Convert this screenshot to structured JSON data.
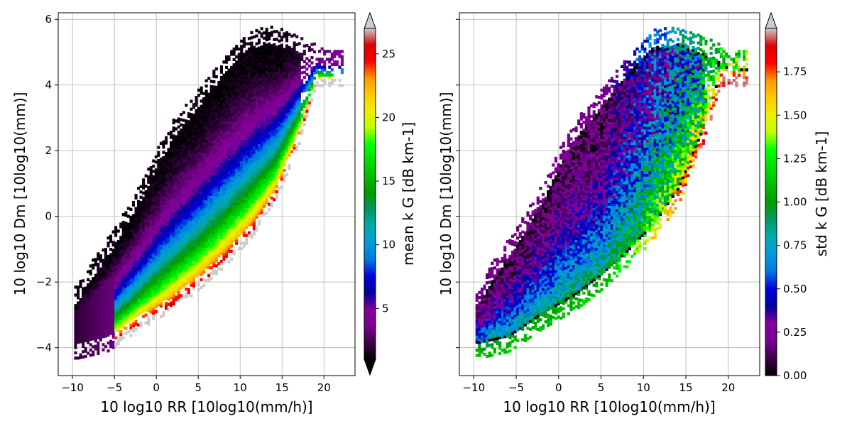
{
  "chart_data": [
    {
      "type": "heatmap",
      "title": "",
      "xlabel": "10 log10 RR [10log10(mm/h)]",
      "ylabel": "10 log10 Dm [10log10(mm)]",
      "xlim": [
        -11.7,
        23.7
      ],
      "ylim": [
        -4.85,
        6.2
      ],
      "xticks": [
        -10,
        -5,
        0,
        5,
        10,
        15,
        20
      ],
      "xtick_labels": [
        "−10",
        "−5",
        "0",
        "5",
        "10",
        "15",
        "20"
      ],
      "yticks": [
        -4,
        -2,
        0,
        2,
        4,
        6
      ],
      "ytick_labels": [
        "−4",
        "−2",
        "0",
        "2",
        "4",
        "6"
      ],
      "grid": true,
      "colormap": "nipy_spectral",
      "colorbar": {
        "label": "mean k G [dB km-1]",
        "range": [
          1,
          27
        ],
        "ticks": [
          5,
          10,
          15,
          20,
          25
        ],
        "tick_labels": [
          "5",
          "10",
          "15",
          "20",
          "25"
        ],
        "extend": "both",
        "over_color": "#c8c8c8",
        "under_color": "#000000"
      },
      "data_region": {
        "description_points_lower_edge_x": [
          -9.5,
          -6,
          -2,
          2,
          5,
          8,
          11,
          14,
          17,
          19
        ],
        "description_points_lower_edge_y": [
          -4.2,
          -4,
          -3.3,
          -2.7,
          -2.1,
          -1.4,
          -0.6,
          0.5,
          2.4,
          4.1
        ],
        "description_points_upper_edge_x": [
          -9.5,
          -8,
          -5,
          -2,
          0,
          2,
          5,
          8,
          11,
          14,
          17,
          20
        ],
        "description_points_upper_edge_y": [
          -2.4,
          -1.7,
          -0.6,
          0.7,
          1.8,
          2.7,
          3.6,
          4.6,
          5.4,
          5.5,
          5.2,
          4.8
        ]
      }
    },
    {
      "type": "heatmap",
      "title": "",
      "xlabel": "10 log10 RR [10log10(mm/h)]",
      "ylabel": "10 log10 Dm [10log10(mm)]",
      "xlim": [
        -11.7,
        23.7
      ],
      "ylim": [
        -4.85,
        6.2
      ],
      "xticks": [
        -10,
        -5,
        0,
        5,
        10,
        15,
        20
      ],
      "xtick_labels": [
        "−10",
        "−5",
        "0",
        "5",
        "10",
        "15",
        "20"
      ],
      "yticks": [
        -4,
        -2,
        0,
        2,
        4,
        6
      ],
      "grid": true,
      "colormap": "nipy_spectral",
      "colorbar": {
        "label": "std k G [dB km-1]",
        "range": [
          0,
          2
        ],
        "ticks": [
          0,
          0.25,
          0.5,
          0.75,
          1.0,
          1.25,
          1.5,
          1.75
        ],
        "tick_labels": [
          "0.00",
          "0.25",
          "0.50",
          "0.75",
          "1.00",
          "1.25",
          "1.50",
          "1.75"
        ],
        "extend": "max",
        "over_color": "#c8c8c8"
      }
    }
  ]
}
